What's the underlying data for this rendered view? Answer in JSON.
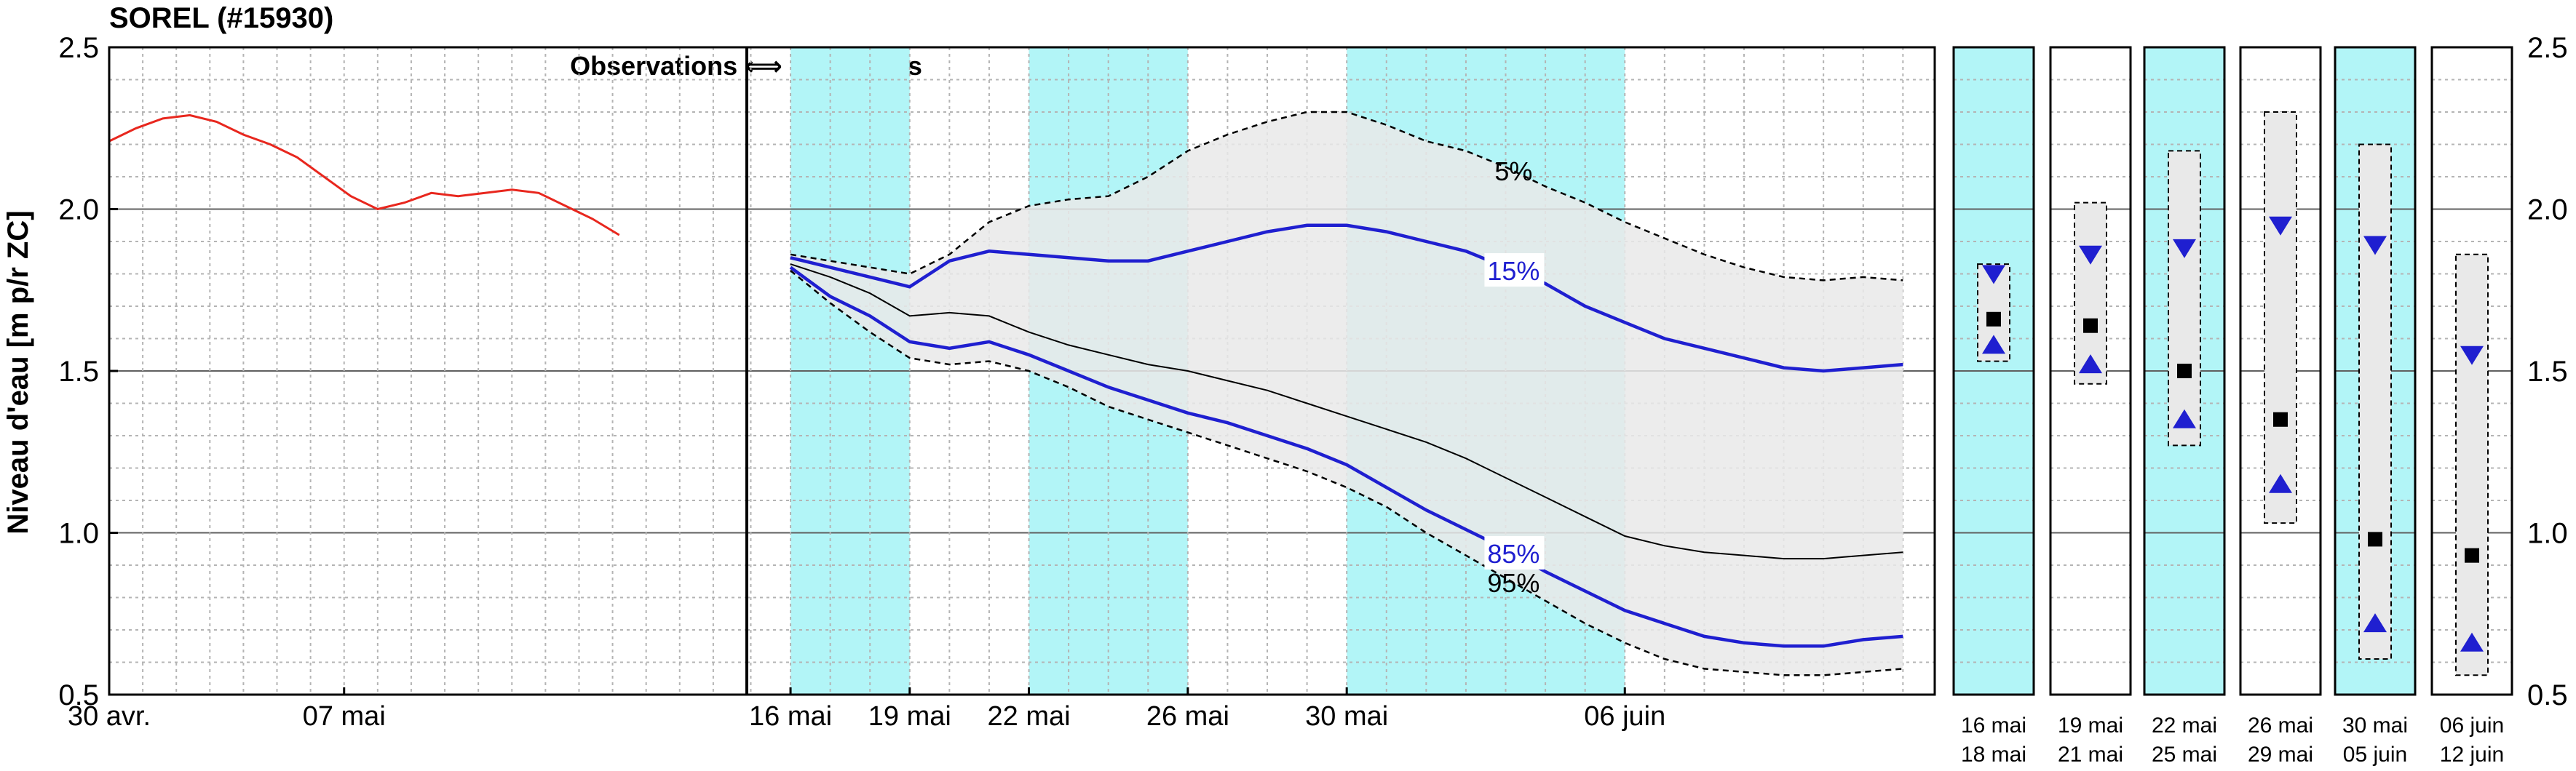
{
  "title": "SOREL (#15930)",
  "colors": {
    "observed": "#e8271e",
    "median": "#000000",
    "band": "#e9e9e9",
    "q15_q85": "#1f1fd0",
    "shade": "#b2f5f7",
    "grid_major": "#606060",
    "grid_minor": "#b4b4b4"
  },
  "chart_data": {
    "type": "line",
    "title": "SOREL (#15930)",
    "ylabel": "Niveau d'eau [m p/r ZC]",
    "ylim": [
      0.5,
      2.5
    ],
    "yticks": [
      "0.5",
      "1.0",
      "1.5",
      "2.0",
      "2.5"
    ],
    "grid": true,
    "separator_label": "Observations ⟺ Prévisions",
    "observations": {
      "x_ticks": [
        "30 avr.",
        "07 mai"
      ],
      "series": {
        "name": "",
        "x_days": [
          0,
          0.8,
          1.6,
          2.4,
          3.2,
          4.0,
          4.8,
          5.6,
          6.4,
          7.2,
          8.0,
          8.8,
          9.6,
          10.4,
          11.2,
          12.0,
          12.8,
          13.6,
          14.4,
          15.2
        ],
        "values": [
          2.21,
          2.25,
          2.28,
          2.29,
          2.27,
          2.23,
          2.2,
          2.16,
          2.1,
          2.04,
          2.0,
          2.02,
          2.05,
          2.04,
          2.05,
          2.06,
          2.05,
          2.01,
          1.97,
          1.92
        ]
      }
    },
    "forecast": {
      "x_ticks": [
        "16 mai",
        "19 mai",
        "22 mai",
        "26 mai",
        "30 mai",
        "06 juin"
      ],
      "shaded_ranges": [
        [
          "16 mai",
          "19 mai"
        ],
        [
          "22 mai",
          "26 mai"
        ],
        [
          "30 mai",
          "06 juin"
        ]
      ],
      "x_days": [
        0,
        1,
        2,
        3,
        4,
        5,
        6,
        7,
        8,
        9,
        10,
        11,
        12,
        13,
        14,
        15,
        16,
        17,
        18,
        19,
        20,
        21,
        22,
        23,
        24,
        25,
        26,
        27,
        28
      ],
      "series": [
        {
          "name": "5%",
          "style": "dashed",
          "values": [
            1.86,
            1.84,
            1.82,
            1.8,
            1.86,
            1.96,
            2.01,
            2.03,
            2.04,
            2.1,
            2.18,
            2.23,
            2.27,
            2.3,
            2.3,
            2.26,
            2.21,
            2.18,
            2.13,
            2.07,
            2.02,
            1.96,
            1.91,
            1.86,
            1.82,
            1.79,
            1.78,
            1.79,
            1.78
          ]
        },
        {
          "name": "15%",
          "style": "blue",
          "values": [
            1.85,
            1.82,
            1.79,
            1.76,
            1.84,
            1.87,
            1.86,
            1.85,
            1.84,
            1.84,
            1.87,
            1.9,
            1.93,
            1.95,
            1.95,
            1.93,
            1.9,
            1.87,
            1.82,
            1.77,
            1.7,
            1.65,
            1.6,
            1.57,
            1.54,
            1.51,
            1.5,
            1.51,
            1.52
          ]
        },
        {
          "name": "",
          "style": "median",
          "values": [
            1.83,
            1.79,
            1.74,
            1.67,
            1.68,
            1.67,
            1.62,
            1.58,
            1.55,
            1.52,
            1.5,
            1.47,
            1.44,
            1.4,
            1.36,
            1.32,
            1.28,
            1.23,
            1.17,
            1.11,
            1.05,
            0.99,
            0.96,
            0.94,
            0.93,
            0.92,
            0.92,
            0.93,
            0.94
          ]
        },
        {
          "name": "85%",
          "style": "blue",
          "values": [
            1.82,
            1.73,
            1.67,
            1.59,
            1.57,
            1.59,
            1.55,
            1.5,
            1.45,
            1.41,
            1.37,
            1.34,
            1.3,
            1.26,
            1.21,
            1.14,
            1.07,
            1.01,
            0.95,
            0.88,
            0.82,
            0.76,
            0.72,
            0.68,
            0.66,
            0.65,
            0.65,
            0.67,
            0.68
          ]
        },
        {
          "name": "95%",
          "style": "dashed",
          "values": [
            1.81,
            1.71,
            1.62,
            1.54,
            1.52,
            1.53,
            1.5,
            1.45,
            1.39,
            1.35,
            1.31,
            1.27,
            1.23,
            1.19,
            1.14,
            1.08,
            1.0,
            0.93,
            0.86,
            0.79,
            0.72,
            0.66,
            0.61,
            0.58,
            0.57,
            0.56,
            0.56,
            0.57,
            0.58
          ]
        }
      ],
      "series_label_positions": {
        "5%": 18.2,
        "15%": 18.2,
        "85%": 18.2,
        "95%": 18.2
      }
    },
    "periods": [
      {
        "label_start": "16 mai",
        "label_end": "18 mai",
        "shaded": true,
        "band": [
          1.53,
          1.83
        ],
        "q05": 1.8,
        "mean": 1.66,
        "q95": 1.58
      },
      {
        "label_start": "19 mai",
        "label_end": "21 mai",
        "shaded": false,
        "band": [
          1.46,
          2.02
        ],
        "q05": 1.86,
        "mean": 1.64,
        "q95": 1.52
      },
      {
        "label_start": "22 mai",
        "label_end": "25 mai",
        "shaded": true,
        "band": [
          1.27,
          2.18
        ],
        "q05": 1.88,
        "mean": 1.5,
        "q95": 1.35
      },
      {
        "label_start": "26 mai",
        "label_end": "29 mai",
        "shaded": false,
        "band": [
          1.03,
          2.3
        ],
        "q05": 1.95,
        "mean": 1.35,
        "q95": 1.15
      },
      {
        "label_start": "30 mai",
        "label_end": "05 juin",
        "shaded": true,
        "band": [
          0.61,
          2.2
        ],
        "q05": 1.89,
        "mean": 0.98,
        "q95": 0.72
      },
      {
        "label_start": "06 juin",
        "label_end": "12 juin",
        "shaded": false,
        "band": [
          0.56,
          1.86
        ],
        "q05": 1.55,
        "mean": 0.93,
        "q95": 0.66
      }
    ]
  }
}
